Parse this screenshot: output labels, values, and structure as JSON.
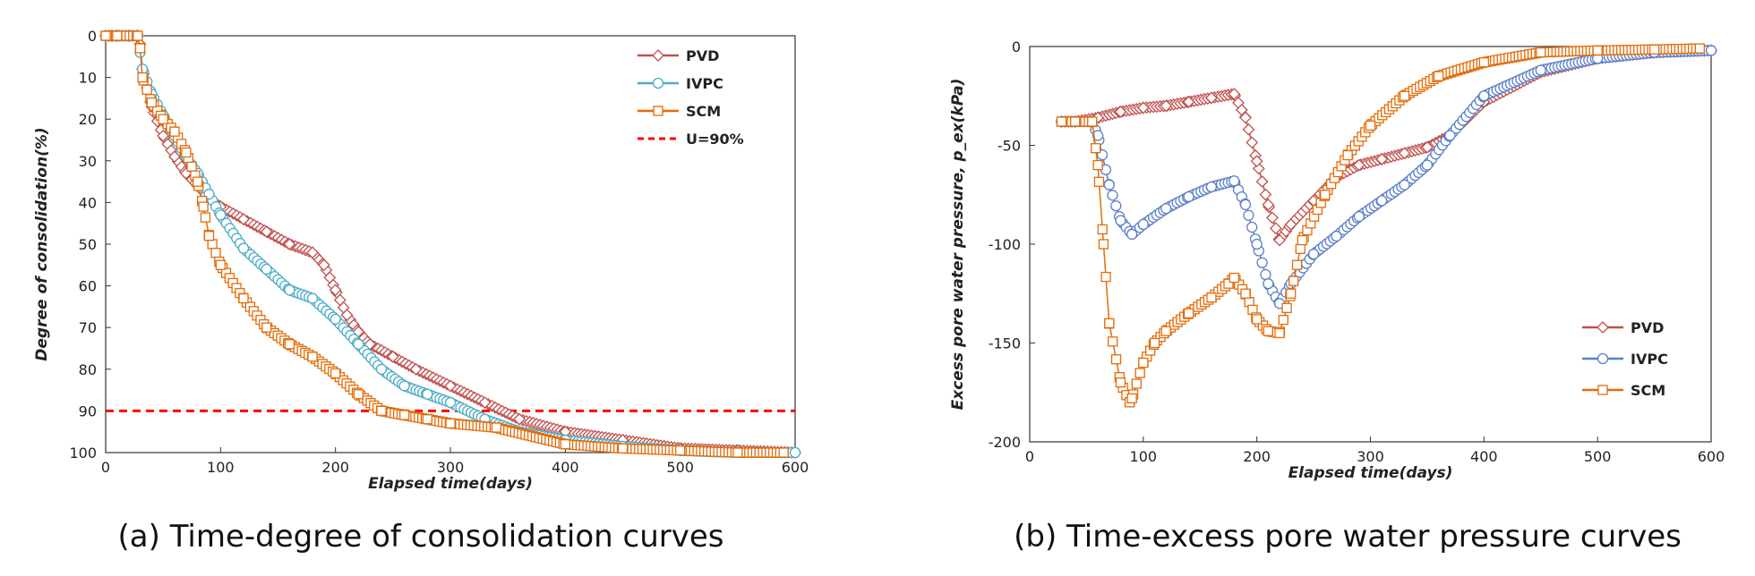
{
  "colors": {
    "PVD": "#c0504d",
    "IVPC": "#4bacc6",
    "IVPC_b": "#5b7fc7",
    "SCM": "#e36c09",
    "U90": "#ff0000"
  },
  "chart_data": [
    {
      "type": "line",
      "title": "",
      "caption": "(a) Time-degree of consolidation curves",
      "xlabel": "Elapsed time(days)",
      "ylabel": "Degree of consolidation(%)",
      "xlim": [
        0,
        600
      ],
      "ylim": [
        0,
        100
      ],
      "y_inverted": true,
      "xticks": [
        "0",
        "100",
        "200",
        "300",
        "400",
        "500",
        "600"
      ],
      "yticks": [
        "0",
        "10",
        "20",
        "30",
        "40",
        "50",
        "60",
        "70",
        "80",
        "90",
        "100"
      ],
      "legend": [
        "PVD",
        "IVPC",
        "SCM",
        "U=90%"
      ],
      "legend_position": "top-right",
      "reference_line": {
        "name": "U=90%",
        "y": 90
      },
      "series": [
        {
          "name": "PVD",
          "marker": "diamond",
          "x": [
            0,
            5,
            10,
            20,
            28,
            30,
            32,
            40,
            50,
            60,
            70,
            80,
            90,
            100,
            120,
            140,
            160,
            180,
            190,
            200,
            210,
            220,
            230,
            250,
            270,
            300,
            330,
            360,
            400,
            450,
            500,
            550,
            600
          ],
          "y": [
            0,
            0,
            0,
            0,
            0,
            2,
            8,
            17,
            24,
            29,
            33,
            36,
            39,
            41,
            44,
            47,
            50,
            52,
            55,
            61,
            67,
            71,
            74,
            77,
            80,
            84,
            88,
            92,
            95,
            97,
            99,
            99.5,
            100
          ]
        },
        {
          "name": "IVPC",
          "marker": "circle",
          "x": [
            0,
            10,
            28,
            32,
            40,
            50,
            60,
            70,
            80,
            90,
            100,
            120,
            140,
            160,
            180,
            200,
            220,
            240,
            260,
            280,
            300,
            330,
            360,
            400,
            450,
            500,
            550,
            600
          ],
          "y": [
            0,
            0,
            0,
            8,
            14,
            19,
            24,
            29,
            33,
            38,
            43,
            51,
            56,
            61,
            63,
            68,
            74,
            80,
            84,
            86,
            88,
            92,
            95,
            97,
            98.5,
            99.5,
            100,
            100
          ]
        },
        {
          "name": "SCM",
          "marker": "square",
          "x": [
            0,
            10,
            28,
            30,
            32,
            40,
            50,
            60,
            70,
            80,
            85,
            90,
            100,
            120,
            140,
            160,
            180,
            200,
            220,
            240,
            260,
            280,
            300,
            340,
            400,
            450,
            500,
            550,
            590
          ],
          "y": [
            0,
            0,
            0,
            3,
            10,
            16,
            20,
            23,
            28,
            35,
            41,
            48,
            55,
            63,
            70,
            74,
            77,
            81,
            86,
            90,
            91,
            92,
            93,
            94,
            98,
            99,
            99.5,
            100,
            100
          ]
        }
      ]
    },
    {
      "type": "line",
      "title": "",
      "caption": "(b) Time-excess pore water pressure curves",
      "xlabel": "Elapsed time(days)",
      "ylabel": "Excess pore water pressure, p_ex(kPa)",
      "xlim": [
        0,
        600
      ],
      "ylim": [
        -200,
        0
      ],
      "xticks": [
        "0",
        "100",
        "200",
        "300",
        "400",
        "500",
        "600"
      ],
      "yticks": [
        "0",
        "-50",
        "-100",
        "-150",
        "-200"
      ],
      "legend": [
        "PVD",
        "IVPC",
        "SCM"
      ],
      "legend_position": "lower-right",
      "series": [
        {
          "name": "PVD",
          "marker": "diamond",
          "x": [
            28,
            40,
            60,
            80,
            100,
            120,
            140,
            160,
            180,
            190,
            200,
            210,
            220,
            230,
            250,
            270,
            290,
            310,
            330,
            350,
            370,
            400,
            450,
            500,
            550,
            600
          ],
          "y": [
            -38,
            -38,
            -36,
            -33,
            -31,
            -30,
            -28,
            -26,
            -24,
            -36,
            -58,
            -80,
            -98,
            -90,
            -78,
            -66,
            -60,
            -57,
            -54,
            -51,
            -45,
            -28,
            -13,
            -6,
            -3,
            -2
          ]
        },
        {
          "name": "IVPC",
          "marker": "circle",
          "x": [
            28,
            40,
            55,
            60,
            70,
            80,
            90,
            100,
            120,
            140,
            160,
            180,
            190,
            200,
            210,
            220,
            230,
            250,
            270,
            290,
            310,
            330,
            350,
            370,
            400,
            450,
            500,
            550,
            600
          ],
          "y": [
            -38,
            -38,
            -38,
            -45,
            -70,
            -88,
            -95,
            -90,
            -82,
            -76,
            -71,
            -68,
            -80,
            -100,
            -120,
            -130,
            -120,
            -105,
            -96,
            -86,
            -78,
            -70,
            -60,
            -45,
            -25,
            -12,
            -6,
            -3,
            -2
          ]
        },
        {
          "name": "SCM",
          "marker": "square",
          "x": [
            28,
            40,
            55,
            60,
            65,
            70,
            80,
            88,
            90,
            100,
            110,
            120,
            140,
            160,
            175,
            180,
            190,
            200,
            210,
            220,
            230,
            240,
            260,
            280,
            300,
            330,
            360,
            400,
            450,
            500,
            550,
            590
          ],
          "y": [
            -38,
            -38,
            -38,
            -60,
            -100,
            -140,
            -170,
            -180,
            -178,
            -160,
            -150,
            -144,
            -135,
            -127,
            -120,
            -117,
            -125,
            -138,
            -144,
            -145,
            -125,
            -98,
            -75,
            -55,
            -40,
            -25,
            -15,
            -8,
            -3,
            -2,
            -1.5,
            -1
          ]
        }
      ]
    }
  ]
}
